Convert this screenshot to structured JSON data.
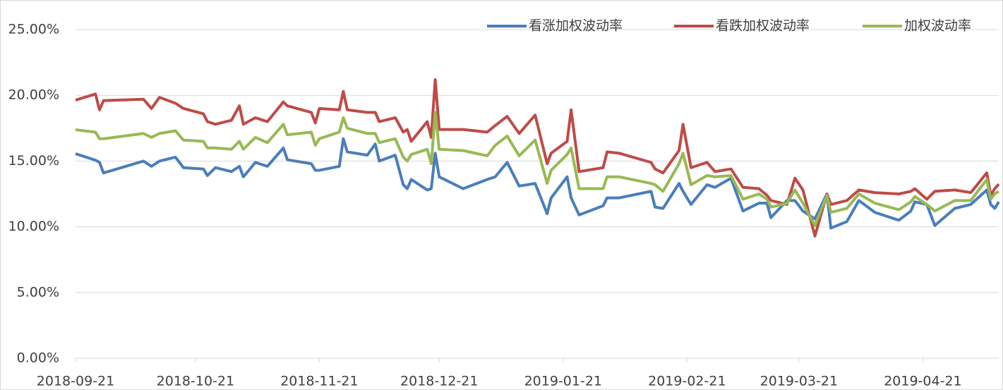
{
  "chart_data": {
    "type": "line",
    "x": [
      "2018-09-21",
      "2018-09-26",
      "2018-09-27",
      "2018-09-28",
      "2018-10-08",
      "2018-10-10",
      "2018-10-12",
      "2018-10-16",
      "2018-10-18",
      "2018-10-23",
      "2018-10-24",
      "2018-10-26",
      "2018-10-30",
      "2018-11-01",
      "2018-11-02",
      "2018-11-05",
      "2018-11-08",
      "2018-11-12",
      "2018-11-13",
      "2018-11-19",
      "2018-11-20",
      "2018-11-21",
      "2018-11-26",
      "2018-11-27",
      "2018-11-28",
      "2018-12-03",
      "2018-12-05",
      "2018-12-06",
      "2018-12-10",
      "2018-12-12",
      "2018-12-13",
      "2018-12-14",
      "2018-12-18",
      "2018-12-19",
      "2018-12-20",
      "2018-12-21",
      "2018-12-27",
      "2019-01-02",
      "2019-01-04",
      "2019-01-07",
      "2019-01-10",
      "2019-01-14",
      "2019-01-17",
      "2019-01-18",
      "2019-01-22",
      "2019-01-23",
      "2019-01-25",
      "2019-01-31",
      "2019-02-01",
      "2019-02-04",
      "2019-02-12",
      "2019-02-13",
      "2019-02-15",
      "2019-02-19",
      "2019-02-20",
      "2019-02-22",
      "2019-02-26",
      "2019-02-28",
      "2019-03-04",
      "2019-03-07",
      "2019-03-11",
      "2019-03-13",
      "2019-03-14",
      "2019-03-18",
      "2019-03-20",
      "2019-03-22",
      "2019-03-25",
      "2019-03-28",
      "2019-03-29",
      "2019-04-02",
      "2019-04-05",
      "2019-04-09",
      "2019-04-15",
      "2019-04-18",
      "2019-04-19",
      "2019-04-22",
      "2019-04-24",
      "2019-04-29",
      "2019-05-03",
      "2019-05-07",
      "2019-05-08",
      "2019-05-09",
      "2019-05-10"
    ],
    "series": [
      {
        "name": "看涨加权波动率",
        "color": "#4a7ebb",
        "values": [
          15.56,
          15.07,
          14.9,
          14.1,
          15.0,
          14.6,
          15.0,
          15.3,
          14.5,
          14.4,
          13.9,
          14.5,
          14.2,
          14.6,
          13.8,
          14.9,
          14.6,
          16.0,
          15.1,
          14.8,
          14.3,
          14.3,
          14.6,
          16.7,
          15.7,
          15.45,
          16.3,
          15.0,
          15.45,
          13.2,
          12.9,
          13.6,
          12.8,
          12.9,
          15.6,
          13.8,
          12.9,
          13.6,
          13.8,
          14.9,
          13.1,
          13.3,
          11.0,
          12.2,
          13.8,
          12.2,
          10.9,
          11.6,
          12.2,
          12.2,
          12.7,
          11.5,
          11.4,
          13.3,
          12.7,
          11.7,
          13.2,
          13.0,
          13.7,
          11.2,
          11.8,
          11.8,
          10.7,
          12.0,
          12.0,
          11.2,
          10.6,
          12.5,
          9.9,
          10.4,
          12.0,
          11.1,
          10.5,
          11.2,
          11.9,
          11.7,
          10.1,
          11.4,
          11.7,
          12.8,
          11.7,
          11.4,
          11.9
        ]
      },
      {
        "name": "看跌加权波动率",
        "color": "#be4b48",
        "values": [
          19.64,
          20.1,
          18.9,
          19.6,
          19.7,
          19.0,
          19.85,
          19.4,
          19.0,
          18.6,
          18.0,
          17.8,
          18.1,
          19.2,
          17.8,
          18.3,
          18.0,
          19.5,
          19.2,
          18.7,
          17.9,
          19.0,
          18.9,
          20.3,
          18.9,
          18.7,
          18.7,
          18.0,
          18.3,
          17.2,
          17.4,
          16.5,
          18.0,
          16.8,
          21.2,
          17.4,
          17.4,
          17.2,
          17.7,
          18.4,
          17.1,
          18.5,
          14.8,
          15.6,
          16.5,
          18.9,
          14.2,
          14.5,
          15.7,
          15.6,
          14.9,
          14.4,
          14.1,
          15.8,
          17.8,
          14.5,
          14.9,
          14.2,
          14.4,
          13.0,
          12.9,
          12.4,
          12.0,
          11.7,
          13.7,
          12.8,
          9.3,
          12.5,
          11.7,
          12.0,
          12.8,
          12.6,
          12.5,
          12.7,
          12.9,
          12.1,
          12.7,
          12.8,
          12.6,
          14.1,
          12.4,
          12.9,
          13.25
        ]
      },
      {
        "name": "加权波动率",
        "color": "#98b954",
        "values": [
          17.38,
          17.2,
          16.7,
          16.7,
          17.1,
          16.8,
          17.1,
          17.3,
          16.6,
          16.5,
          16.0,
          16.0,
          15.9,
          16.5,
          15.9,
          16.8,
          16.4,
          17.8,
          17.0,
          17.2,
          16.2,
          16.7,
          17.2,
          18.3,
          17.5,
          17.1,
          17.1,
          16.4,
          16.7,
          15.3,
          15.0,
          15.5,
          15.9,
          14.8,
          18.7,
          15.9,
          15.8,
          15.4,
          16.2,
          16.9,
          15.4,
          16.6,
          13.3,
          14.3,
          15.5,
          16.0,
          12.9,
          12.9,
          13.8,
          13.8,
          13.3,
          13.2,
          12.7,
          14.8,
          15.6,
          13.2,
          13.9,
          13.8,
          13.9,
          12.1,
          12.5,
          12.1,
          11.5,
          11.8,
          12.8,
          11.8,
          10.1,
          12.4,
          11.1,
          11.4,
          12.5,
          11.8,
          11.3,
          11.9,
          12.3,
          11.7,
          11.2,
          12.0,
          12.0,
          13.6,
          12.1,
          12.5,
          12.7
        ]
      }
    ],
    "xlim": [
      "2018-09-21",
      "2019-05-10"
    ],
    "xticks": [
      "2018-09-21",
      "2018-10-21",
      "2018-11-21",
      "2018-12-21",
      "2019-01-21",
      "2019-02-21",
      "2019-03-21",
      "2019-04-21"
    ],
    "ylim": [
      0,
      25
    ],
    "yticks": [
      {
        "value": 0,
        "label": "0.00%"
      },
      {
        "value": 5,
        "label": "5.00%"
      },
      {
        "value": 10,
        "label": "10.00%"
      },
      {
        "value": 15,
        "label": "15.00%"
      },
      {
        "value": 20,
        "label": "20.00%"
      },
      {
        "value": 25,
        "label": "25.00%"
      }
    ],
    "grid": true,
    "legend": "top-right"
  }
}
